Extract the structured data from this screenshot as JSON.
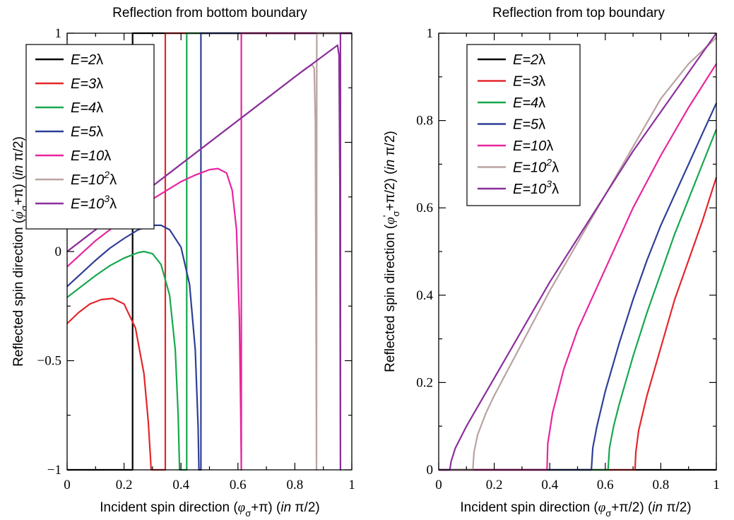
{
  "chart_data": [
    {
      "type": "line",
      "title": "Reflection from bottom boundary",
      "xlabel": "Incident spin direction (φσ+π) (in π/2)",
      "ylabel": "Reflected spin direction (φ'σ+π) (in π/2)",
      "xlim": [
        0,
        1
      ],
      "ylim": [
        -1,
        1
      ],
      "x_ticks": [
        "0",
        "0.2",
        "0.4",
        "0.6",
        "0.8",
        "1"
      ],
      "y_ticks": [
        "−1",
        "−0.5",
        "0",
        "1"
      ],
      "y_tick_values": [
        -1,
        -0.5,
        0,
        1
      ],
      "legend_position": "top-left",
      "grid": false,
      "series": [
        {
          "name": "E=2λ",
          "color": "#000000",
          "x": [
            0,
            0.23,
            0.23,
            0.23,
            1
          ],
          "y": [
            -1,
            -1,
            0.2,
            1,
            1
          ]
        },
        {
          "name": "E=3λ",
          "color": "#e3262b",
          "x": [
            0,
            0.04,
            0.08,
            0.12,
            0.16,
            0.2,
            0.24,
            0.27,
            0.285,
            0.293,
            0.295,
            0.345,
            0.345,
            0.345,
            1
          ],
          "y": [
            -0.33,
            -0.28,
            -0.24,
            -0.22,
            -0.215,
            -0.24,
            -0.35,
            -0.56,
            -0.78,
            -0.95,
            -1,
            -1,
            0,
            1,
            1
          ]
        },
        {
          "name": "E=4λ",
          "color": "#16a84e",
          "x": [
            0,
            0.05,
            0.1,
            0.15,
            0.2,
            0.25,
            0.27,
            0.3,
            0.33,
            0.36,
            0.38,
            0.39,
            0.395,
            0.42,
            0.42,
            1
          ],
          "y": [
            -0.21,
            -0.16,
            -0.11,
            -0.065,
            -0.03,
            -0.005,
            0,
            -0.01,
            -0.06,
            -0.2,
            -0.45,
            -0.75,
            -1,
            -1,
            1,
            1
          ]
        },
        {
          "name": "E=5λ",
          "color": "#2f3f96",
          "x": [
            0,
            0.05,
            0.1,
            0.15,
            0.2,
            0.25,
            0.3,
            0.33,
            0.36,
            0.4,
            0.43,
            0.45,
            0.46,
            0.463,
            0.47,
            0.47,
            1
          ],
          "y": [
            -0.16,
            -0.1,
            -0.04,
            0.015,
            0.06,
            0.1,
            0.12,
            0.12,
            0.1,
            0.02,
            -0.15,
            -0.45,
            -0.8,
            -1,
            -1,
            1,
            1
          ]
        },
        {
          "name": "E=10λ",
          "color": "#e8259e",
          "x": [
            0,
            0.1,
            0.2,
            0.3,
            0.4,
            0.45,
            0.5,
            0.53,
            0.56,
            0.58,
            0.595,
            0.605,
            0.61,
            0.612,
            0.612,
            1
          ],
          "y": [
            -0.07,
            0.05,
            0.15,
            0.24,
            0.32,
            0.35,
            0.375,
            0.38,
            0.36,
            0.28,
            0.1,
            -0.3,
            -0.75,
            -1,
            1,
            1
          ]
        },
        {
          "name": "E=10²λ",
          "color": "#b9a3a1",
          "x": [
            0,
            0.1,
            0.2,
            0.3,
            0.4,
            0.5,
            0.6,
            0.7,
            0.8,
            0.84,
            0.86,
            0.868,
            0.872,
            0.873,
            0.875,
            0.876,
            0.877,
            1
          ],
          "y": [
            0,
            0.1,
            0.2,
            0.3,
            0.4,
            0.5,
            0.6,
            0.7,
            0.8,
            0.84,
            0.855,
            0.84,
            0.6,
            0.2,
            -0.5,
            -1,
            1,
            1
          ]
        },
        {
          "name": "E=10³λ",
          "color": "#8b2f9c",
          "x": [
            0,
            0.2,
            0.4,
            0.6,
            0.8,
            0.95,
            0.955,
            0.958,
            0.96,
            0.96,
            1
          ],
          "y": [
            0,
            0.2,
            0.4,
            0.6,
            0.8,
            0.945,
            0.9,
            0.3,
            -1,
            1,
            1
          ]
        }
      ]
    },
    {
      "type": "line",
      "title": "Reflection from top boundary",
      "xlabel": "Incident spin direction (φσ+π/2) (in π/2)",
      "ylabel": "Reflected spin direction (φ'σ+π/2) (in π/2)",
      "xlim": [
        0,
        1
      ],
      "ylim": [
        0,
        1
      ],
      "x_ticks": [
        "0",
        "0.2",
        "0.4",
        "0.6",
        "0.8",
        "1"
      ],
      "y_ticks": [
        "0",
        "0.2",
        "0.4",
        "0.6",
        "0.8",
        "1"
      ],
      "y_tick_values": [
        0,
        0.2,
        0.4,
        0.6,
        0.8,
        1
      ],
      "legend_position": "top-left",
      "grid": false,
      "series": [
        {
          "name": "E=2λ",
          "color": "#000000",
          "x": [
            0,
            1
          ],
          "y": [
            0,
            0
          ]
        },
        {
          "name": "E=3λ",
          "color": "#e3262b",
          "x": [
            0,
            0.707,
            0.71,
            0.72,
            0.75,
            0.8,
            0.85,
            0.9,
            0.95,
            1
          ],
          "y": [
            0,
            0,
            0.04,
            0.09,
            0.17,
            0.28,
            0.39,
            0.48,
            0.57,
            0.67
          ]
        },
        {
          "name": "E=4λ",
          "color": "#16a84e",
          "x": [
            0,
            0.61,
            0.615,
            0.63,
            0.65,
            0.7,
            0.75,
            0.8,
            0.85,
            0.9,
            0.95,
            1
          ],
          "y": [
            0,
            0,
            0.05,
            0.1,
            0.15,
            0.26,
            0.36,
            0.45,
            0.54,
            0.62,
            0.7,
            0.78
          ]
        },
        {
          "name": "E=5λ",
          "color": "#2f3f96",
          "x": [
            0,
            0.55,
            0.555,
            0.57,
            0.6,
            0.65,
            0.7,
            0.75,
            0.8,
            0.85,
            0.9,
            0.95,
            1
          ],
          "y": [
            0,
            0,
            0.05,
            0.1,
            0.18,
            0.29,
            0.39,
            0.48,
            0.56,
            0.63,
            0.7,
            0.77,
            0.84
          ]
        },
        {
          "name": "E=10λ",
          "color": "#e8259e",
          "x": [
            0,
            0.39,
            0.393,
            0.41,
            0.45,
            0.5,
            0.6,
            0.7,
            0.8,
            0.9,
            1
          ],
          "y": [
            0,
            0,
            0.06,
            0.13,
            0.23,
            0.32,
            0.46,
            0.6,
            0.72,
            0.83,
            0.93
          ]
        },
        {
          "name": "E=10²λ",
          "color": "#b9a3a1",
          "x": [
            0,
            0.123,
            0.127,
            0.14,
            0.17,
            0.2,
            0.3,
            0.4,
            0.5,
            0.6,
            0.7,
            0.8,
            0.9,
            1
          ],
          "y": [
            0,
            0,
            0.04,
            0.08,
            0.13,
            0.17,
            0.29,
            0.41,
            0.52,
            0.63,
            0.74,
            0.85,
            0.93,
            0.99
          ]
        },
        {
          "name": "E=10³λ",
          "color": "#8b2f9c",
          "x": [
            0,
            0.04,
            0.045,
            0.06,
            0.1,
            0.2,
            0.3,
            0.4,
            0.5,
            0.6,
            0.7,
            0.8,
            0.9,
            1
          ],
          "y": [
            0,
            0,
            0.02,
            0.05,
            0.1,
            0.21,
            0.32,
            0.43,
            0.53,
            0.63,
            0.73,
            0.82,
            0.91,
            1
          ]
        }
      ]
    }
  ]
}
